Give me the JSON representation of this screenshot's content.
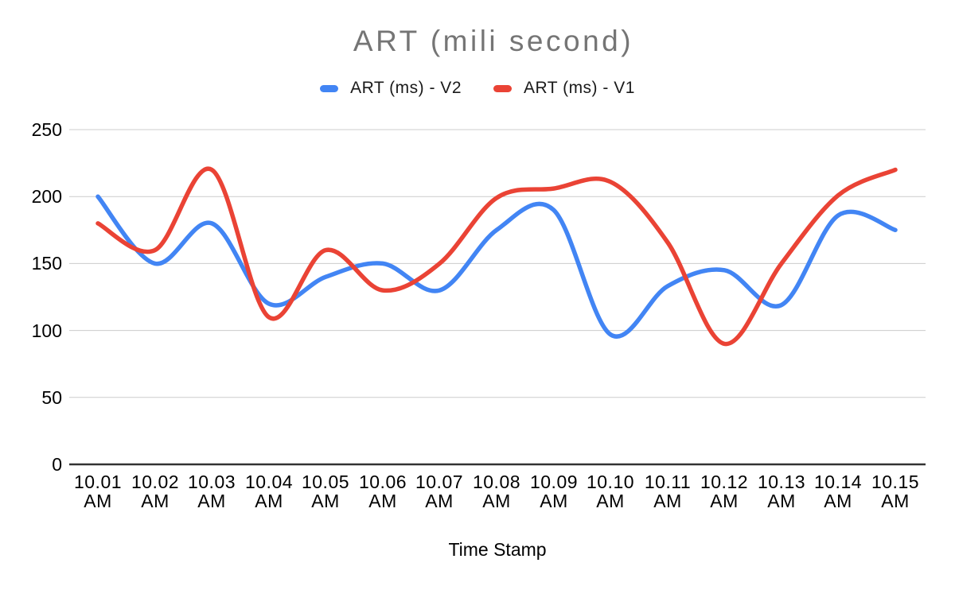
{
  "chart_data": {
    "type": "line",
    "curve": "smooth",
    "title": "ART (mili second)",
    "xlabel": "Time Stamp",
    "ylabel": "",
    "categories": [
      "10.01 AM",
      "10.02 AM",
      "10.03 AM",
      "10.04 AM",
      "10.05 AM",
      "10.06 AM",
      "10.07 AM",
      "10.08 AM",
      "10.09 AM",
      "10.10 AM",
      "10.11 AM",
      "10.12 AM",
      "10.13 AM",
      "10.14 AM",
      "10.15 AM"
    ],
    "series": [
      {
        "name": "ART (ms) - V2",
        "color": "#4285F4",
        "values": [
          200,
          150,
          180,
          120,
          140,
          150,
          130,
          175,
          190,
          97,
          133,
          145,
          119,
          186,
          175
        ]
      },
      {
        "name": "ART (ms) - V1",
        "color": "#EA4335",
        "values": [
          180,
          160,
          220,
          110,
          160,
          130,
          150,
          199,
          206,
          211,
          166,
          90,
          150,
          201,
          220
        ]
      }
    ],
    "ylim": [
      0,
      250
    ],
    "yticks": [
      0,
      50,
      100,
      150,
      200,
      250
    ],
    "grid": true,
    "legend_position": "top"
  },
  "colors": {
    "title_text": "#757575",
    "axis_text": "#000000",
    "gridline": "#cccccc",
    "axis_line": "#333333",
    "background": "#ffffff"
  }
}
